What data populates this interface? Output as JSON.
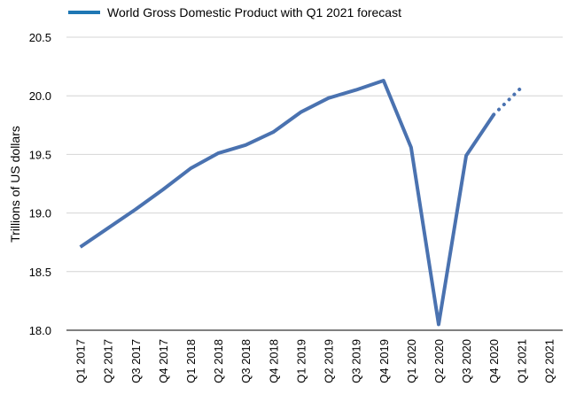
{
  "chart_data": {
    "type": "line",
    "title": "",
    "xlabel": "",
    "ylabel": "Trillions of US dollars",
    "ylim": [
      18.0,
      20.5
    ],
    "yticks": [
      "18.0",
      "18.5",
      "19.0",
      "19.5",
      "20.0",
      "20.5"
    ],
    "grid": true,
    "legend": "top-left",
    "categories": [
      "Q1 2017",
      "Q2 2017",
      "Q3 2017",
      "Q4 2017",
      "Q1 2018",
      "Q2 2018",
      "Q3 2018",
      "Q4 2018",
      "Q1 2019",
      "Q2 2019",
      "Q3 2019",
      "Q4 2019",
      "Q1 2020",
      "Q2 2020",
      "Q3 2020",
      "Q4 2020",
      "Q1 2021",
      "Q2 2021"
    ],
    "series": [
      {
        "name": "World Gross Domestic Product with Q1 2021 forecast",
        "color": "#4A72B0",
        "values": [
          18.71,
          18.87,
          19.03,
          19.2,
          19.38,
          19.51,
          19.58,
          19.69,
          19.86,
          19.98,
          20.05,
          20.13,
          19.56,
          18.05,
          19.49,
          19.84,
          20.07,
          null
        ],
        "forecast_from_index": 15
      }
    ]
  }
}
